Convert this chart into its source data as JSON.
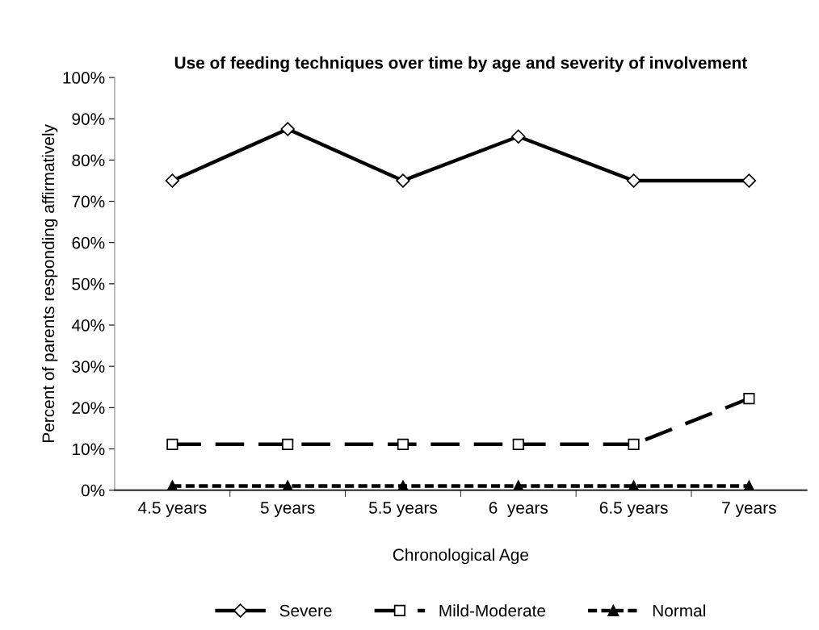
{
  "chart_data": {
    "type": "line",
    "title": "Use of feeding techniques over time by age and severity of involvement",
    "xlabel": "Chronological Age",
    "ylabel": "Percent of parents responding affirmatively",
    "categories": [
      "4.5 years",
      "5 years",
      "5.5 years",
      "6  years",
      "6.5 years",
      "7 years"
    ],
    "series": [
      {
        "name": "Severe",
        "color": "#000000",
        "marker": "diamond",
        "line_style": "solid",
        "values": [
          75,
          87.5,
          75,
          85.7,
          75,
          75
        ]
      },
      {
        "name": "Mild-Moderate",
        "color": "#000000",
        "marker": "square",
        "line_style": "dashed",
        "values": [
          11.1,
          11.1,
          11.1,
          11.1,
          11.1,
          22.2
        ]
      },
      {
        "name": "Normal",
        "color": "#000000",
        "marker": "triangle",
        "line_style": "dotted",
        "values": [
          1,
          1,
          1,
          1,
          1,
          1
        ]
      }
    ],
    "ylim": [
      0,
      100
    ],
    "yticks": [
      {
        "value": 0,
        "label": "0%"
      },
      {
        "value": 10,
        "label": "10%"
      },
      {
        "value": 20,
        "label": "20%"
      },
      {
        "value": 30,
        "label": "30%"
      },
      {
        "value": 40,
        "label": "40%"
      },
      {
        "value": 50,
        "label": "50%"
      },
      {
        "value": 60,
        "label": "60%"
      },
      {
        "value": 70,
        "label": "70%"
      },
      {
        "value": 80,
        "label": "80%"
      },
      {
        "value": 90,
        "label": "90%"
      },
      {
        "value": 100,
        "label": "100%"
      }
    ],
    "grid": false,
    "legend": "bottom"
  }
}
